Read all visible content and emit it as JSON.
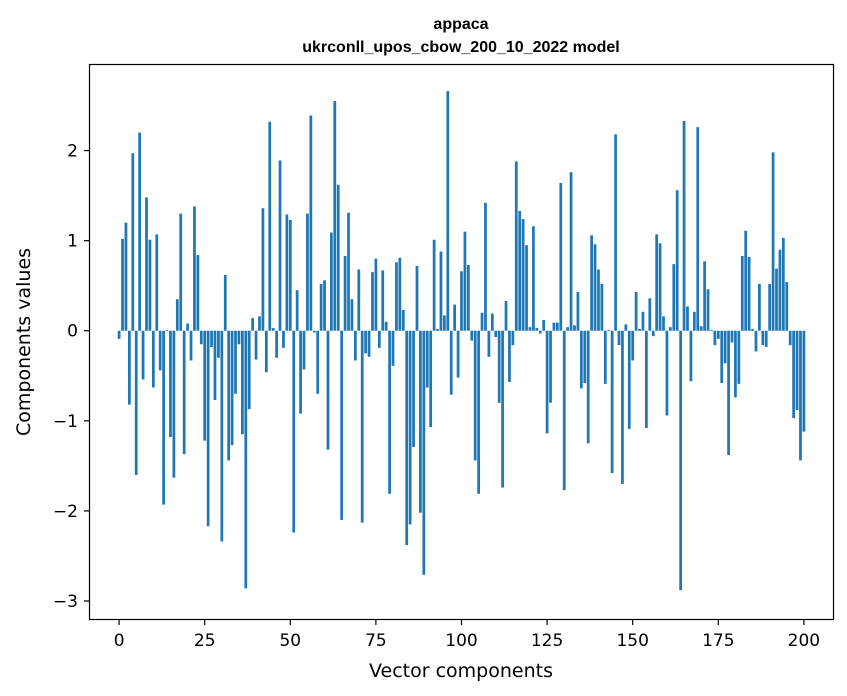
{
  "chart_data": {
    "type": "bar",
    "title": "appaca",
    "subtitle": "ukrconll_upos_cbow_200_10_2022 model",
    "xlabel": "Vector components",
    "ylabel": "Components values",
    "xlim": [
      -8.5,
      208.5
    ],
    "ylim": [
      -3.2,
      2.95
    ],
    "xticks": [
      0,
      25,
      50,
      75,
      100,
      125,
      150,
      175,
      200
    ],
    "yticks": [
      -3,
      -2,
      -1,
      0,
      1,
      2
    ],
    "ytick_labels": [
      "−3",
      "−2",
      "−1",
      "0",
      "1",
      "2"
    ],
    "bar_color": "#1f77b4",
    "grid": false,
    "values": [
      -0.09,
      1.02,
      1.2,
      -0.82,
      1.97,
      -1.6,
      2.2,
      -0.54,
      1.48,
      1.01,
      -0.63,
      1.07,
      -0.44,
      -1.93,
      0.01,
      -1.18,
      -1.63,
      0.35,
      1.3,
      -1.37,
      0.08,
      -0.33,
      1.38,
      0.84,
      -0.15,
      -1.22,
      -2.17,
      -0.18,
      -0.77,
      -0.3,
      -2.34,
      0.62,
      -1.44,
      -1.27,
      -0.7,
      -0.15,
      -1.15,
      -2.86,
      -0.87,
      0.14,
      -0.32,
      0.16,
      1.36,
      -0.46,
      2.32,
      0.03,
      -0.3,
      1.89,
      -0.19,
      1.29,
      1.23,
      -2.24,
      0.45,
      -0.92,
      -0.43,
      1.3,
      2.39,
      -0.02,
      -0.7,
      0.52,
      0.56,
      -1.32,
      1.09,
      2.55,
      1.62,
      -2.1,
      0.83,
      1.31,
      0.35,
      -0.33,
      0.68,
      -2.13,
      -0.25,
      -0.29,
      0.65,
      0.8,
      -0.19,
      0.67,
      0.1,
      -1.81,
      -0.39,
      0.76,
      0.81,
      0.23,
      -2.38,
      -2.15,
      -1.29,
      0.72,
      -2.02,
      -2.71,
      -0.63,
      -1.07,
      1.01,
      0.02,
      0.88,
      0.17,
      2.66,
      -0.71,
      0.29,
      -0.52,
      0.66,
      1.1,
      0.73,
      -0.11,
      -1.44,
      -1.81,
      0.2,
      1.42,
      -0.29,
      0.19,
      -0.07,
      -0.8,
      -1.74,
      0.33,
      -0.57,
      -0.16,
      1.88,
      1.33,
      1.24,
      0.95,
      0.04,
      1.16,
      0.03,
      -0.03,
      0.12,
      -1.14,
      -0.8,
      0.09,
      0.09,
      1.64,
      -1.77,
      0.04,
      1.76,
      0.06,
      0.43,
      -0.64,
      -0.58,
      -1.25,
      1.06,
      0.96,
      0.68,
      0.52,
      -0.59,
      0.01,
      -1.58,
      2.18,
      -0.16,
      -1.7,
      0.07,
      -1.09,
      -0.33,
      0.43,
      0.02,
      0.21,
      -1.08,
      0.36,
      -0.06,
      1.07,
      0.97,
      0.16,
      -0.94,
      0.04,
      0.74,
      1.56,
      -2.88,
      2.33,
      0.27,
      -0.56,
      0.21,
      2.26,
      0.05,
      0.77,
      0.46,
      0.01,
      -0.16,
      -0.09,
      -0.58,
      -0.36,
      -1.38,
      -0.13,
      -0.74,
      -0.59,
      0.83,
      1.11,
      0.82,
      0.02,
      -0.23,
      0.52,
      -0.16,
      -0.18,
      0.52,
      1.98,
      0.69,
      0.9,
      1.03,
      0.54,
      -0.16,
      -0.97,
      -0.88,
      -1.44,
      -1.12
    ]
  }
}
